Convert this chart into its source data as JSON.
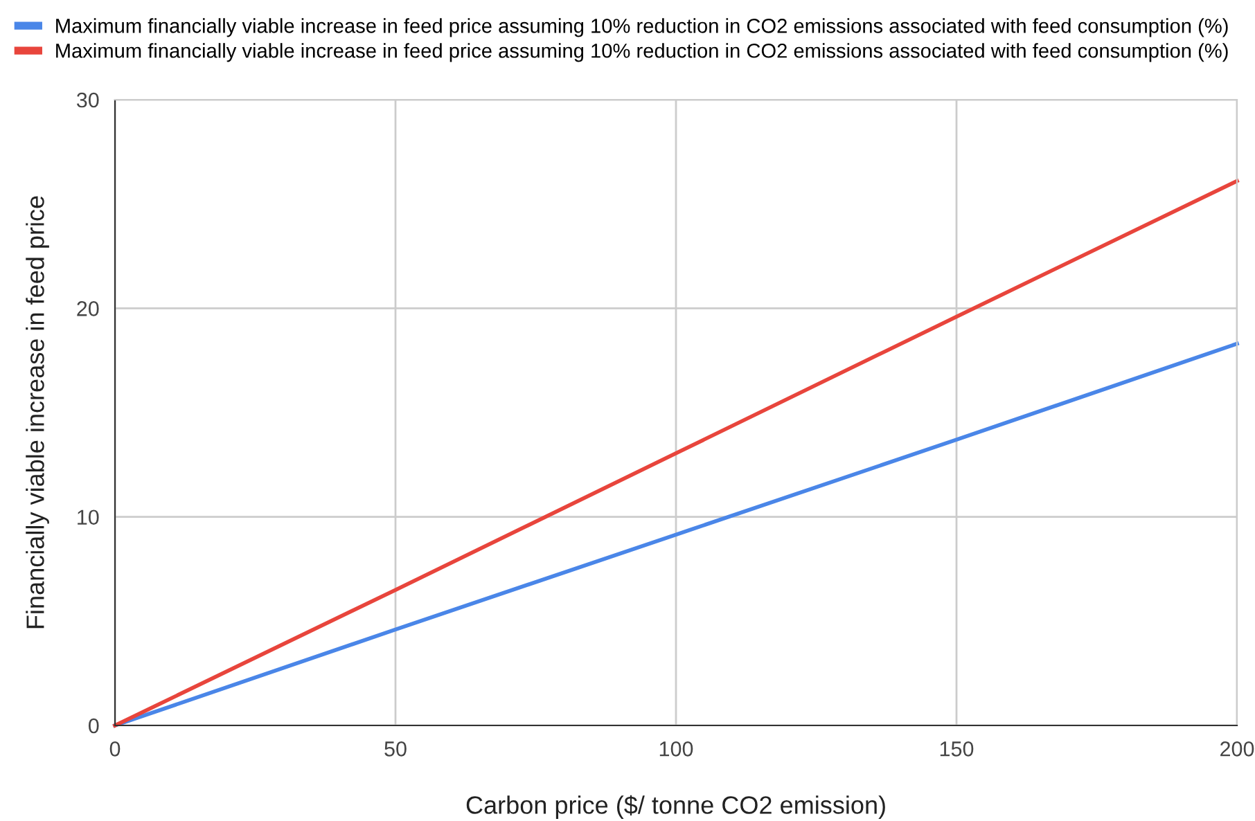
{
  "chart_data": {
    "type": "line",
    "xlabel": "Carbon price ($/ tonne CO2 emission)",
    "ylabel": "Financially viable increase in feed price",
    "x": [
      0,
      50,
      100,
      150,
      200
    ],
    "series": [
      {
        "name": "Maximum financially viable increase in feed price assuming 10% reduction in CO2 emissions associated with feed consumption (%)",
        "color": "#4a86e8",
        "values": [
          0,
          4.6,
          9.15,
          13.7,
          18.3
        ]
      },
      {
        "name": "Maximum financially viable increase in feed price assuming 10% reduction in CO2 emissions associated with feed consumption (%)",
        "color": "#e8453c",
        "values": [
          0,
          6.5,
          13.05,
          19.6,
          26.1
        ]
      }
    ],
    "xlim": [
      0,
      200
    ],
    "xticks": [
      0,
      50,
      100,
      150,
      200
    ],
    "ylim": [
      0,
      30
    ],
    "yticks": [
      0,
      10,
      20,
      30
    ],
    "grid": true,
    "legend": "top",
    "marker": "none",
    "line_style": "solid"
  }
}
